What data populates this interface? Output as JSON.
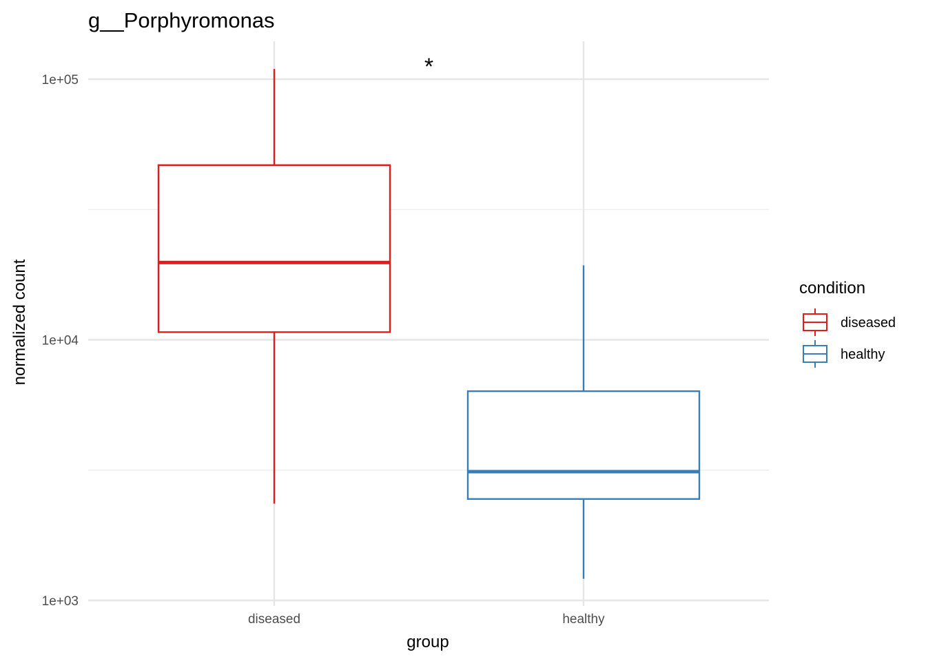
{
  "chart_data": {
    "type": "boxplot",
    "title": "g__Porphyromonas",
    "xlabel": "group",
    "ylabel": "normalized count",
    "y_scale": "log10",
    "ylim": [
      1000,
      130000
    ],
    "y_ticks": [
      {
        "value": 1000,
        "label": "1e+03"
      },
      {
        "value": 10000,
        "label": "1e+04"
      },
      {
        "value": 100000,
        "label": "1e+05"
      }
    ],
    "y_minor_ticks": [
      3162,
      31623
    ],
    "categories": [
      "diseased",
      "healthy"
    ],
    "grid": true,
    "legend": {
      "title": "condition",
      "position": "right",
      "entries": [
        "diseased",
        "healthy"
      ]
    },
    "series": [
      {
        "name": "diseased",
        "color": "#e41a1c",
        "category": "diseased",
        "whisker_low": 2350,
        "q1": 10700,
        "median": 19800,
        "q3": 46800,
        "whisker_high": 109500
      },
      {
        "name": "healthy",
        "color": "#377eb8",
        "category": "healthy",
        "whisker_low": 1210,
        "q1": 2450,
        "median": 3120,
        "q3": 6350,
        "whisker_high": 19300
      }
    ],
    "annotations": [
      {
        "text": "*",
        "between": [
          "diseased",
          "healthy"
        ]
      }
    ]
  }
}
